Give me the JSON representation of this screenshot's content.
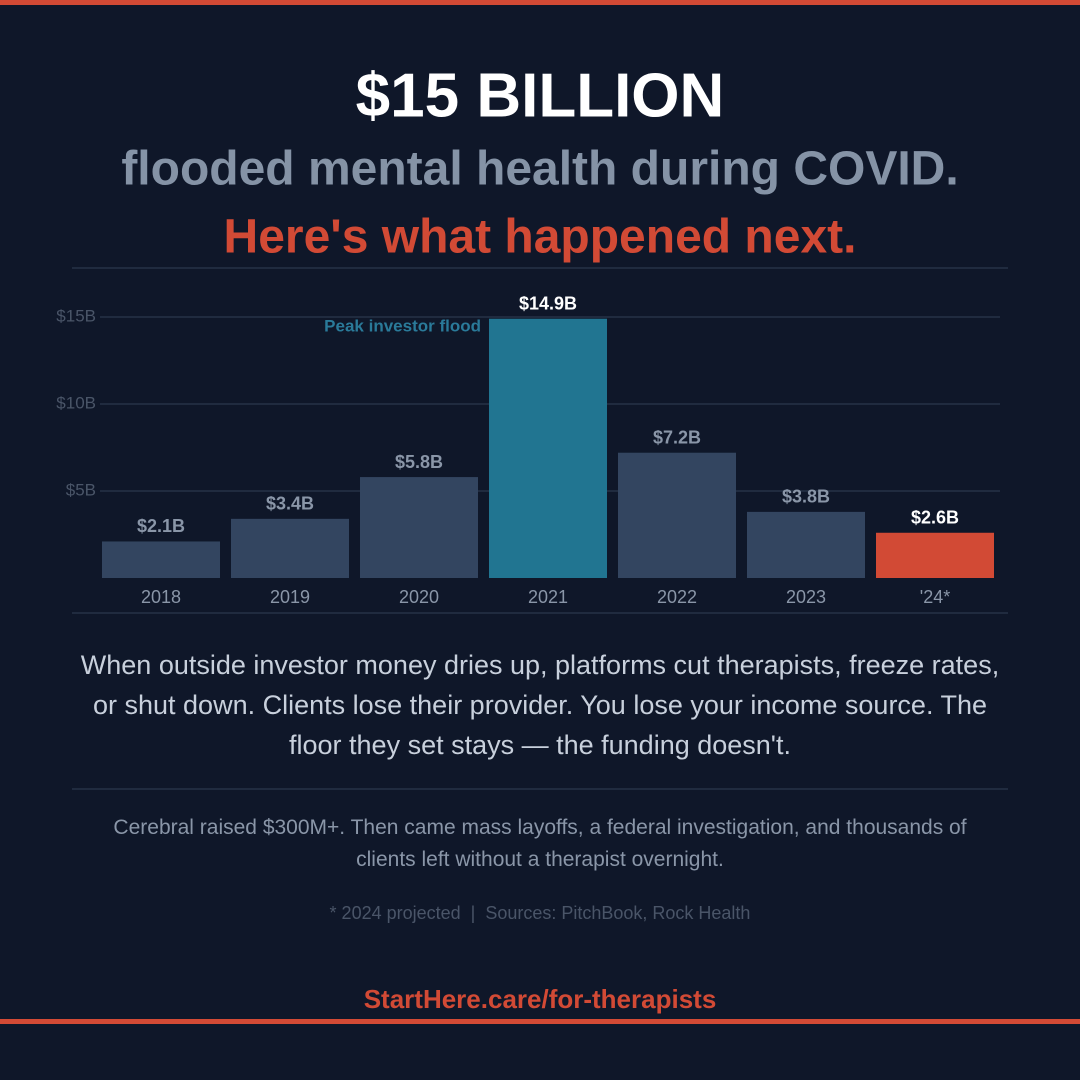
{
  "header": {
    "title": "$15 BILLION",
    "subtitle": "flooded mental health during COVID.",
    "tagline": "Here's what happened next."
  },
  "chart_data": {
    "type": "bar",
    "categories": [
      "2018",
      "2019",
      "2020",
      "2021",
      "2022",
      "2023",
      "'24*"
    ],
    "values": [
      2.1,
      3.4,
      5.8,
      14.9,
      7.2,
      3.8,
      2.6
    ],
    "value_labels": [
      "$2.1B",
      "$3.4B",
      "$5.8B",
      "$14.9B",
      "$7.2B",
      "$3.8B",
      "$2.6B"
    ],
    "colors": [
      "#334560",
      "#334560",
      "#334560",
      "#217591",
      "#334560",
      "#334560",
      "#d24a35"
    ],
    "ylim": [
      0,
      15
    ],
    "yticks": [
      {
        "value": 5,
        "label": "$5B"
      },
      {
        "value": 10,
        "label": "$10B"
      },
      {
        "value": 15,
        "label": "$15B"
      }
    ],
    "grid": true,
    "annotation": "Peak investor flood"
  },
  "body": "When outside investor money dries up, platforms cut therapists, freeze rates, or shut down. Clients lose their provider. You lose your income source. The floor they set stays — the funding doesn't.",
  "note": "Cerebral raised $300M+. Then came mass layoffs, a federal investigation, and thousands of clients left without a therapist overnight.",
  "footnote": "* 2024 projected  |  Sources: PitchBook, Rock Health",
  "cta": "StartHere.care/for-therapists"
}
